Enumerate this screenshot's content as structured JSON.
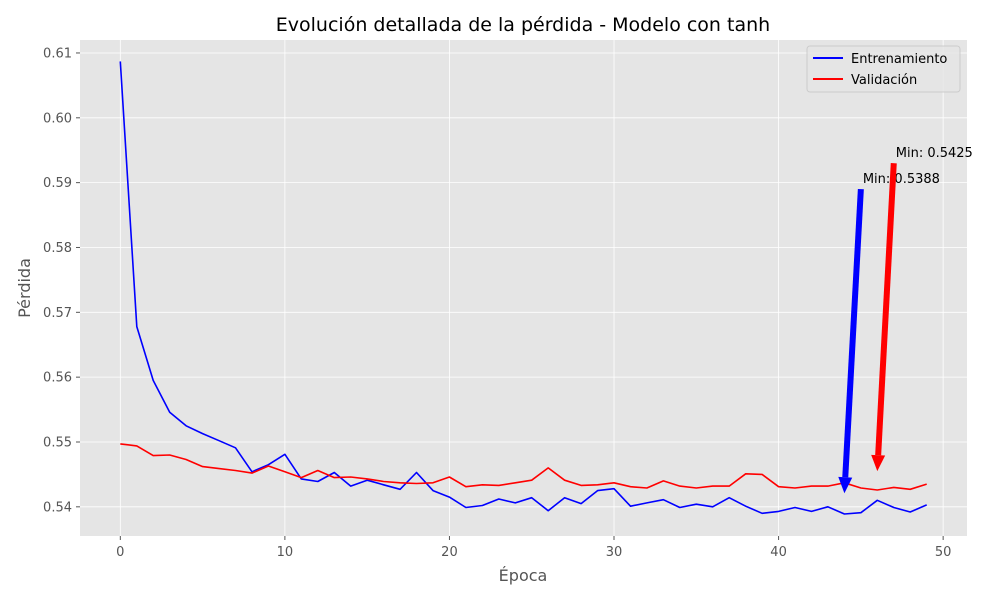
{
  "chart_data": {
    "type": "line",
    "title": "Evolución detallada de la pérdida - Modelo con tanh",
    "xlabel": "Época",
    "ylabel": "Pérdida",
    "xlim": [
      -2.45,
      51.45
    ],
    "ylim": [
      0.5355,
      0.612
    ],
    "xticks": [
      0,
      10,
      20,
      30,
      40,
      50
    ],
    "xtick_labels": [
      "0",
      "10",
      "20",
      "30",
      "40",
      "50"
    ],
    "yticks": [
      0.54,
      0.55,
      0.56,
      0.57,
      0.58,
      0.59,
      0.6,
      0.61
    ],
    "ytick_labels": [
      "0.54",
      "0.55",
      "0.56",
      "0.57",
      "0.58",
      "0.59",
      "0.60",
      "0.61"
    ],
    "grid": true,
    "legend_position": "top-right",
    "x": [
      0,
      1,
      2,
      3,
      4,
      5,
      6,
      7,
      8,
      9,
      10,
      11,
      12,
      13,
      14,
      15,
      16,
      17,
      18,
      19,
      20,
      21,
      22,
      23,
      24,
      25,
      26,
      27,
      28,
      29,
      30,
      31,
      32,
      33,
      34,
      35,
      36,
      37,
      38,
      39,
      40,
      41,
      42,
      43,
      44,
      45,
      46,
      47,
      48,
      49
    ],
    "series": [
      {
        "name": "Entrenamiento",
        "color": "#0000ff",
        "values": [
          0.6087,
          0.5678,
          0.5595,
          0.5546,
          0.5525,
          0.5513,
          0.5502,
          0.5491,
          0.5454,
          0.5465,
          0.5481,
          0.5443,
          0.5439,
          0.5453,
          0.5432,
          0.5441,
          0.5434,
          0.5427,
          0.5453,
          0.5425,
          0.5415,
          0.5399,
          0.5402,
          0.5412,
          0.5406,
          0.5414,
          0.5394,
          0.5414,
          0.5405,
          0.5425,
          0.5428,
          0.5401,
          0.5406,
          0.5411,
          0.5399,
          0.5404,
          0.54,
          0.5414,
          0.5401,
          0.539,
          0.5393,
          0.5399,
          0.5393,
          0.54,
          0.5389,
          0.5391,
          0.541,
          0.5399,
          0.5392,
          0.5403
        ]
      },
      {
        "name": "Validación",
        "color": "#ff0000",
        "values": [
          0.5497,
          0.5494,
          0.5479,
          0.548,
          0.5473,
          0.5462,
          0.5459,
          0.5456,
          0.5452,
          0.5463,
          0.5454,
          0.5445,
          0.5456,
          0.5445,
          0.5446,
          0.5443,
          0.5439,
          0.5437,
          0.5436,
          0.5437,
          0.5446,
          0.5431,
          0.5434,
          0.5433,
          0.5437,
          0.5441,
          0.546,
          0.5441,
          0.5433,
          0.5434,
          0.5437,
          0.5431,
          0.5429,
          0.544,
          0.5432,
          0.5429,
          0.5432,
          0.5432,
          0.5451,
          0.545,
          0.5431,
          0.5429,
          0.5432,
          0.5432,
          0.5437,
          0.5429,
          0.5426,
          0.543,
          0.5427,
          0.5435
        ]
      }
    ],
    "annotations": [
      {
        "text": "Min: 0.5388",
        "color": "#0000ff",
        "point": [
          44,
          0.5421
        ],
        "text_pos": [
          45,
          0.589
        ]
      },
      {
        "text": "Min: 0.5425",
        "color": "#ff0000",
        "point": [
          46,
          0.5455
        ],
        "text_pos": [
          47,
          0.593
        ]
      }
    ]
  }
}
